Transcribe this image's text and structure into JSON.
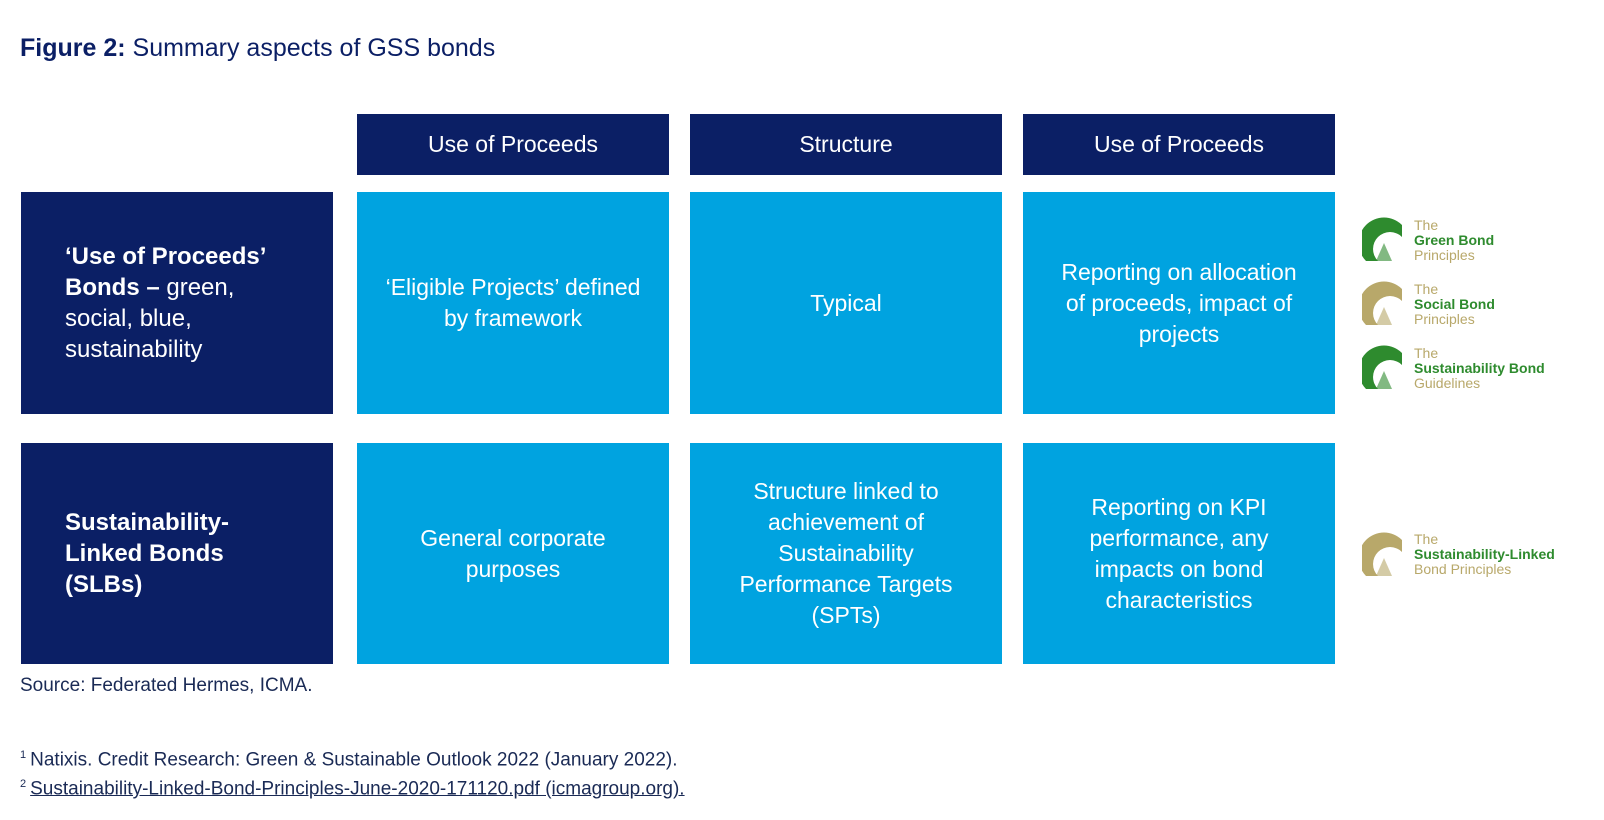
{
  "title": {
    "label": "Figure 2:",
    "text": "Summary aspects of GSS bonds"
  },
  "table": {
    "headers": [
      "Use of Proceeds",
      "Structure",
      "Use of Proceeds"
    ],
    "rows": [
      {
        "label_bold": "‘Use of Proceeds’ Bonds –",
        "label_normal": "green, social, blue, sustainability",
        "cells": [
          "‘Eligible Projects’ defined by framework",
          "Typical",
          "Reporting on allocation of proceeds, impact of projects"
        ],
        "logos": [
          [
            "The",
            "Green Bond",
            "Principles"
          ],
          [
            "The",
            "Social Bond",
            "Principles"
          ],
          [
            "The",
            "Sustainability Bond",
            "Guidelines"
          ]
        ]
      },
      {
        "label_bold": "Sustainability-Linked Bonds (SLBs)",
        "cells": [
          "General corporate purposes",
          "Structure linked to achievement of Sustainability Performance Targets (SPTs)",
          "Reporting on KPI performance, any impacts on bond characteristics"
        ],
        "logos": [
          [
            "The",
            "Sustainability-Linked",
            "Bond Principles"
          ]
        ]
      }
    ]
  },
  "source": "Source: Federated Hermes, ICMA.",
  "footnotes": [
    {
      "mark": "1",
      "text": "Natixis. Credit Research: Green & Sustainable Outlook 2022 (January 2022)."
    },
    {
      "mark": "2",
      "text": "Sustainability-Linked-Bond-Principles-June-2020-171120.pdf (icmagroup.org)."
    }
  ]
}
